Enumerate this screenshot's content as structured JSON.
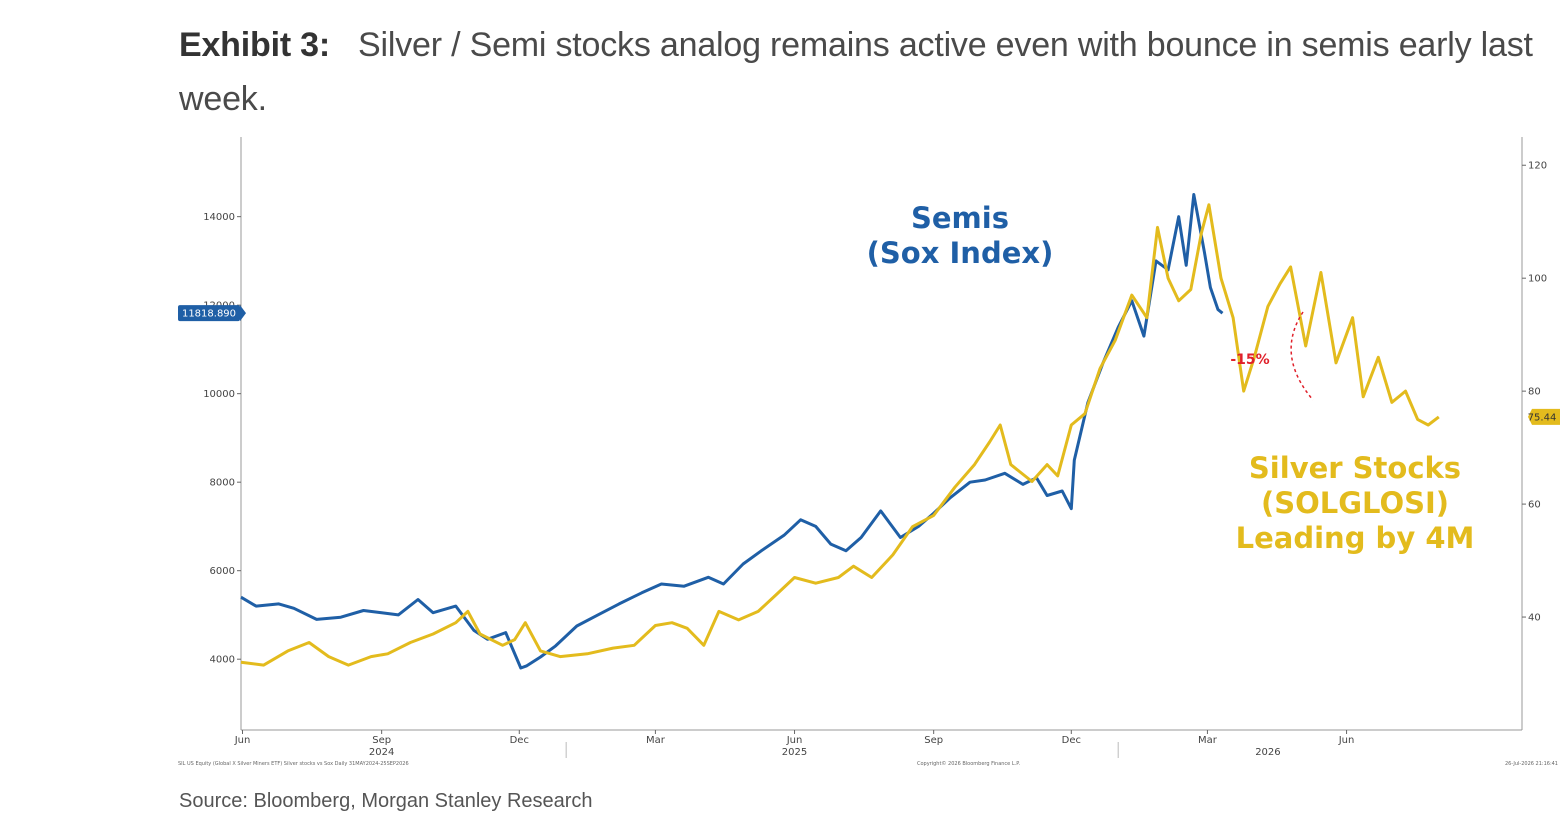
{
  "header": {
    "exhibit_label": "Exhibit 3:",
    "title": "Silver / Semi stocks analog remains active even with bounce in semis early last week."
  },
  "footer": {
    "source": "Source: Bloomberg, Morgan Stanley Research",
    "ticker_note": "SIL US Equity (Global X Silver Miners ETF) Silver stocks vs Sox Daily 31MAY2024-25SEP2026",
    "copyright": "Copyright© 2026 Bloomberg Finance L.P.",
    "timestamp": "26-Jul-2026 21:16:41"
  },
  "colors": {
    "semis": "#1f5fa6",
    "silver": "#e3bb1d",
    "axis": "#999999",
    "annotation": "#e0202a"
  },
  "chart_data": {
    "type": "line",
    "x_ticks": [
      {
        "label": "Jun",
        "date": "2024-06-01"
      },
      {
        "label": "Sep",
        "date": "2024-09-01"
      },
      {
        "label": "Dec",
        "date": "2024-12-01"
      },
      {
        "label": "Mar",
        "date": "2025-03-01"
      },
      {
        "label": "Jun",
        "date": "2025-06-01"
      },
      {
        "label": "Sep",
        "date": "2025-09-01"
      },
      {
        "label": "Dec",
        "date": "2025-12-01"
      },
      {
        "label": "Mar",
        "date": "2026-03-01"
      },
      {
        "label": "Jun",
        "date": "2026-06-01"
      }
    ],
    "x_years": [
      {
        "label": "2024",
        "date": "2024-09-01"
      },
      {
        "label": "2025",
        "date": "2025-06-01"
      },
      {
        "label": "2026",
        "date": "2026-04-10"
      }
    ],
    "xlim": [
      "2024-05-31",
      "2026-09-25"
    ],
    "y_left": {
      "ticks": [
        4000,
        6000,
        8000,
        10000,
        12000,
        14000
      ],
      "lim": [
        2400,
        15800
      ]
    },
    "y_right": {
      "ticks": [
        40,
        60,
        80,
        100,
        120
      ],
      "lim": [
        20,
        125
      ]
    },
    "grid": false,
    "series": [
      {
        "name": "Semis\n(Sox Index)",
        "axis": "left",
        "color": "#1f5fa6",
        "last_value_label": "11818.890",
        "points": [
          [
            "2024-05-31",
            5400
          ],
          [
            "2024-06-10",
            5200
          ],
          [
            "2024-06-25",
            5250
          ],
          [
            "2024-07-05",
            5150
          ],
          [
            "2024-07-20",
            4900
          ],
          [
            "2024-08-05",
            4950
          ],
          [
            "2024-08-20",
            5100
          ],
          [
            "2024-09-01",
            5050
          ],
          [
            "2024-09-12",
            5000
          ],
          [
            "2024-09-25",
            5350
          ],
          [
            "2024-10-05",
            5050
          ],
          [
            "2024-10-20",
            5200
          ],
          [
            "2024-11-01",
            4650
          ],
          [
            "2024-11-10",
            4450
          ],
          [
            "2024-11-22",
            4600
          ],
          [
            "2024-12-02",
            3800
          ],
          [
            "2024-12-06",
            3850
          ],
          [
            "2024-12-15",
            4050
          ],
          [
            "2024-12-25",
            4300
          ],
          [
            "2025-01-08",
            4750
          ],
          [
            "2025-01-22",
            5000
          ],
          [
            "2025-02-05",
            5250
          ],
          [
            "2025-02-20",
            5500
          ],
          [
            "2025-03-05",
            5700
          ],
          [
            "2025-03-20",
            5650
          ],
          [
            "2025-04-05",
            5850
          ],
          [
            "2025-04-15",
            5700
          ],
          [
            "2025-04-28",
            6150
          ],
          [
            "2025-05-10",
            6450
          ],
          [
            "2025-05-25",
            6800
          ],
          [
            "2025-06-05",
            7150
          ],
          [
            "2025-06-15",
            7000
          ],
          [
            "2025-06-25",
            6600
          ],
          [
            "2025-07-05",
            6450
          ],
          [
            "2025-07-15",
            6750
          ],
          [
            "2025-07-28",
            7350
          ],
          [
            "2025-08-10",
            6750
          ],
          [
            "2025-08-22",
            7000
          ],
          [
            "2025-09-01",
            7300
          ],
          [
            "2025-09-12",
            7650
          ],
          [
            "2025-09-25",
            8000
          ],
          [
            "2025-10-05",
            8050
          ],
          [
            "2025-10-18",
            8200
          ],
          [
            "2025-10-30",
            7950
          ],
          [
            "2025-11-08",
            8100
          ],
          [
            "2025-11-15",
            7700
          ],
          [
            "2025-11-25",
            7800
          ],
          [
            "2025-12-01",
            7400
          ],
          [
            "2025-12-03",
            8500
          ],
          [
            "2025-12-12",
            9800
          ],
          [
            "2025-12-22",
            10700
          ],
          [
            "2026-01-01",
            11500
          ],
          [
            "2026-01-10",
            12100
          ],
          [
            "2026-01-18",
            11300
          ],
          [
            "2026-01-26",
            13000
          ],
          [
            "2026-02-03",
            12800
          ],
          [
            "2026-02-10",
            14000
          ],
          [
            "2026-02-15",
            12900
          ],
          [
            "2026-02-20",
            14500
          ],
          [
            "2026-02-27",
            13200
          ],
          [
            "2026-03-03",
            12400
          ],
          [
            "2026-03-08",
            11900
          ],
          [
            "2026-03-11",
            11818.89
          ]
        ]
      },
      {
        "name": "Silver Stocks\n(SOLGLOSI)\nLeading by 4M",
        "axis": "right",
        "color": "#e3bb1d",
        "last_value_label": "75.44",
        "points": [
          [
            "2024-05-31",
            32
          ],
          [
            "2024-06-15",
            31.5
          ],
          [
            "2024-07-01",
            34
          ],
          [
            "2024-07-15",
            35.5
          ],
          [
            "2024-07-28",
            33
          ],
          [
            "2024-08-10",
            31.5
          ],
          [
            "2024-08-25",
            33
          ],
          [
            "2024-09-05",
            33.5
          ],
          [
            "2024-09-20",
            35.5
          ],
          [
            "2024-10-05",
            37
          ],
          [
            "2024-10-20",
            39
          ],
          [
            "2024-10-28",
            41
          ],
          [
            "2024-11-05",
            37
          ],
          [
            "2024-11-20",
            35
          ],
          [
            "2024-11-28",
            36
          ],
          [
            "2024-12-05",
            39
          ],
          [
            "2024-12-15",
            34
          ],
          [
            "2024-12-28",
            33
          ],
          [
            "2025-01-15",
            33.5
          ],
          [
            "2025-02-01",
            34.5
          ],
          [
            "2025-02-15",
            35
          ],
          [
            "2025-03-01",
            38.5
          ],
          [
            "2025-03-12",
            39
          ],
          [
            "2025-03-22",
            38
          ],
          [
            "2025-04-02",
            35
          ],
          [
            "2025-04-12",
            41
          ],
          [
            "2025-04-25",
            39.5
          ],
          [
            "2025-05-08",
            41
          ],
          [
            "2025-05-20",
            44
          ],
          [
            "2025-06-01",
            47
          ],
          [
            "2025-06-15",
            46
          ],
          [
            "2025-06-30",
            47
          ],
          [
            "2025-07-10",
            49
          ],
          [
            "2025-07-22",
            47
          ],
          [
            "2025-08-05",
            51
          ],
          [
            "2025-08-18",
            56
          ],
          [
            "2025-09-01",
            58
          ],
          [
            "2025-09-15",
            63
          ],
          [
            "2025-09-28",
            67
          ],
          [
            "2025-10-08",
            71
          ],
          [
            "2025-10-15",
            74
          ],
          [
            "2025-10-22",
            67
          ],
          [
            "2025-11-05",
            64
          ],
          [
            "2025-11-15",
            67
          ],
          [
            "2025-11-22",
            65
          ],
          [
            "2025-12-01",
            74
          ],
          [
            "2025-12-10",
            76
          ],
          [
            "2025-12-20",
            84
          ],
          [
            "2025-12-30",
            89
          ],
          [
            "2026-01-10",
            97
          ],
          [
            "2026-01-20",
            93
          ],
          [
            "2026-01-27",
            109
          ],
          [
            "2026-02-03",
            100
          ],
          [
            "2026-02-10",
            96
          ],
          [
            "2026-02-18",
            98
          ],
          [
            "2026-02-25",
            108
          ],
          [
            "2026-03-02",
            113
          ],
          [
            "2026-03-10",
            100
          ],
          [
            "2026-03-18",
            93
          ],
          [
            "2026-03-25",
            80
          ],
          [
            "2026-04-01",
            86
          ],
          [
            "2026-04-10",
            95
          ],
          [
            "2026-04-18",
            99
          ],
          [
            "2026-04-25",
            102
          ],
          [
            "2026-05-05",
            88
          ],
          [
            "2026-05-15",
            101
          ],
          [
            "2026-05-25",
            85
          ],
          [
            "2026-06-05",
            93
          ],
          [
            "2026-06-12",
            79
          ],
          [
            "2026-06-22",
            86
          ],
          [
            "2026-07-01",
            78
          ],
          [
            "2026-07-10",
            80
          ],
          [
            "2026-07-18",
            75
          ],
          [
            "2026-07-25",
            74
          ],
          [
            "2026-08-01",
            75.44
          ]
        ]
      }
    ],
    "annotations": {
      "semis_label": [
        "Semis",
        "(Sox Index)"
      ],
      "silver_label": [
        "Silver Stocks",
        "(SOLGLOSI)",
        "Leading by 4M"
      ],
      "drawdown_label": "-15%"
    }
  }
}
